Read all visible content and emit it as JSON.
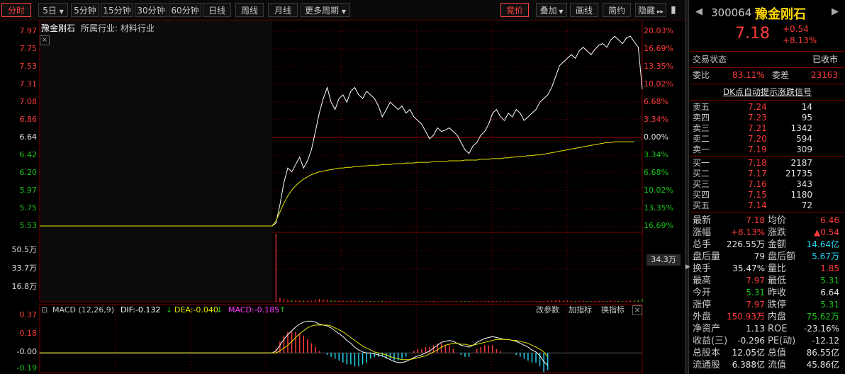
{
  "toolbar": {
    "tabs": [
      {
        "label": "分时",
        "active": true
      },
      {
        "label": "5日"
      },
      {
        "label": "5分钟"
      },
      {
        "label": "15分钟"
      },
      {
        "label": "30分钟"
      },
      {
        "label": "60分钟"
      },
      {
        "label": "日线"
      },
      {
        "label": "周线"
      },
      {
        "label": "月线"
      },
      {
        "label": "更多周期"
      }
    ],
    "right_tabs": [
      {
        "label": "竞价",
        "active": true
      },
      {
        "label": "叠加"
      },
      {
        "label": "画线"
      },
      {
        "label": "简约"
      },
      {
        "label": "隐藏"
      }
    ]
  },
  "chart_header": {
    "name": "豫金刚石",
    "industry_label": "所属行业:",
    "industry": "材料行业",
    "close_symbol": "×"
  },
  "price_axis_left": [
    "7.97",
    "7.75",
    "7.53",
    "7.31",
    "7.08",
    "6.86",
    "6.64",
    "6.42",
    "6.20",
    "5.97",
    "5.75",
    "5.53"
  ],
  "pct_axis_right": [
    "20.03%",
    "16.69%",
    "13.35%",
    "10.02%",
    "6.68%",
    "3.34%",
    "0.00%",
    "3.34%",
    "6.68%",
    "10.02%",
    "13.35%",
    "16.69%"
  ],
  "volume_axis_left": [
    "50.5万",
    "33.7万",
    "16.8万"
  ],
  "volume_marker": "34.3万",
  "macd": {
    "title": "MACD (12,26,9)",
    "dif_label": "DIF:-0.132",
    "dea_label": "DEA:-0.040",
    "macd_label": "MACD:-0.185",
    "buttons": [
      "改参数",
      "加指标",
      "换指标"
    ],
    "close_symbol": "×",
    "axis": [
      "0.37",
      "0.18",
      "-0.00",
      "-0.19"
    ]
  },
  "chart_data": {
    "type": "line",
    "title": "豫金刚石",
    "prev_close": 6.64,
    "ylim": [
      5.31,
      7.97
    ],
    "price": [
      5.31,
      5.31,
      5.31,
      5.31,
      5.31,
      5.31,
      5.31,
      5.31,
      5.31,
      5.31,
      5.31,
      5.31,
      5.31,
      5.31,
      5.31,
      5.31,
      5.31,
      5.31,
      5.31,
      5.31,
      5.31,
      5.31,
      5.31,
      5.31,
      5.31,
      5.31,
      5.31,
      5.31,
      5.31,
      5.31,
      5.31,
      5.31,
      5.31,
      5.31,
      5.31,
      5.31,
      5.31,
      5.31,
      5.31,
      5.31,
      5.31,
      5.31,
      5.31,
      5.31,
      5.31,
      5.31,
      5.31,
      5.31,
      5.31,
      5.31,
      5.31,
      5.31,
      5.31,
      5.31,
      5.31,
      5.31,
      5.31,
      5.31,
      5.31,
      5.31,
      5.35,
      5.6,
      5.9,
      6.1,
      6.05,
      6.15,
      6.25,
      6.1,
      6.2,
      6.35,
      6.6,
      6.85,
      7.05,
      7.2,
      7.0,
      6.9,
      7.05,
      7.1,
      7.0,
      7.15,
      7.2,
      7.1,
      7.05,
      7.15,
      7.1,
      7.05,
      6.95,
      6.8,
      6.9,
      7.0,
      6.95,
      6.9,
      6.95,
      6.85,
      6.9,
      6.8,
      6.75,
      6.7,
      6.6,
      6.5,
      6.55,
      6.65,
      6.6,
      6.62,
      6.65,
      6.6,
      6.55,
      6.45,
      6.35,
      6.3,
      6.4,
      6.45,
      6.55,
      6.6,
      6.7,
      6.85,
      6.9,
      6.8,
      6.75,
      6.85,
      6.8,
      6.9,
      6.85,
      6.75,
      6.8,
      6.85,
      6.9,
      7.0,
      7.05,
      7.1,
      7.2,
      7.35,
      7.5,
      7.55,
      7.6,
      7.65,
      7.6,
      7.7,
      7.75,
      7.7,
      7.65,
      7.72,
      7.78,
      7.8,
      7.75,
      7.85,
      7.9,
      7.85,
      7.8,
      7.88,
      7.9,
      7.82,
      7.75,
      7.18
    ],
    "avg_price": [
      5.31,
      5.31,
      5.31,
      5.31,
      5.31,
      5.31,
      5.31,
      5.31,
      5.31,
      5.31,
      5.31,
      5.31,
      5.31,
      5.31,
      5.31,
      5.31,
      5.31,
      5.31,
      5.31,
      5.31,
      5.31,
      5.31,
      5.31,
      5.31,
      5.31,
      5.31,
      5.31,
      5.31,
      5.31,
      5.31,
      5.31,
      5.31,
      5.31,
      5.31,
      5.31,
      5.31,
      5.31,
      5.31,
      5.31,
      5.31,
      5.31,
      5.31,
      5.31,
      5.31,
      5.31,
      5.31,
      5.31,
      5.31,
      5.31,
      5.31,
      5.31,
      5.31,
      5.31,
      5.31,
      5.31,
      5.31,
      5.31,
      5.31,
      5.31,
      5.31,
      5.38,
      5.5,
      5.62,
      5.72,
      5.8,
      5.86,
      5.91,
      5.95,
      5.98,
      6.01,
      6.03,
      6.05,
      6.06,
      6.07,
      6.08,
      6.09,
      6.1,
      6.1,
      6.11,
      6.11,
      6.12,
      6.12,
      6.13,
      6.13,
      6.14,
      6.14,
      6.14,
      6.15,
      6.15,
      6.15,
      6.16,
      6.16,
      6.16,
      6.17,
      6.17,
      6.17,
      6.18,
      6.18,
      6.18,
      6.18,
      6.19,
      6.19,
      6.19,
      6.19,
      6.2,
      6.2,
      6.2,
      6.2,
      6.21,
      6.21,
      6.21,
      6.21,
      6.22,
      6.22,
      6.22,
      6.23,
      6.23,
      6.23,
      6.24,
      6.24,
      6.25,
      6.25,
      6.26,
      6.26,
      6.27,
      6.27,
      6.28,
      6.28,
      6.29,
      6.3,
      6.31,
      6.32,
      6.33,
      6.34,
      6.35,
      6.36,
      6.37,
      6.38,
      6.39,
      6.4,
      6.41,
      6.42,
      6.43,
      6.44,
      6.45,
      6.45,
      6.46,
      6.46,
      6.46,
      6.46,
      6.46,
      6.46
    ],
    "volume_ylim": [
      0,
      505000
    ],
    "volume": [
      0,
      0,
      0,
      0,
      0,
      0,
      0,
      0,
      0,
      0,
      0,
      0,
      0,
      0,
      0,
      0,
      0,
      0,
      0,
      0,
      0,
      0,
      0,
      0,
      0,
      0,
      0,
      0,
      0,
      0,
      0,
      0,
      0,
      0,
      0,
      0,
      0,
      0,
      0,
      0,
      0,
      0,
      0,
      0,
      0,
      0,
      0,
      0,
      0,
      0,
      0,
      0,
      0,
      0,
      0,
      0,
      0,
      0,
      0,
      0,
      505000,
      30000,
      20000,
      15000,
      12000,
      10000,
      9000,
      8000,
      8000,
      7000,
      15000,
      20000,
      18000,
      16000,
      12000,
      10000,
      9000,
      8000,
      7000,
      9000,
      8000,
      7000,
      6000,
      6000,
      5000,
      5000,
      6000,
      7000,
      5000,
      4000,
      4000,
      4000,
      3000,
      3000,
      4000,
      4000,
      3000,
      3000,
      3000,
      4000,
      5000,
      3000,
      3000,
      3000,
      3000,
      3000,
      4000,
      5000,
      6000,
      5000,
      4000,
      3000,
      3000,
      4000,
      5000,
      6000,
      4000,
      3000,
      3000,
      4000,
      3000,
      3000,
      3000,
      3000,
      3000,
      3000,
      4000,
      5000,
      6000,
      7000,
      9000,
      11000,
      10000,
      9000,
      8000,
      7000,
      6000,
      7000,
      8000,
      6000,
      5000,
      6000,
      7000,
      6000,
      5000,
      8000,
      9000,
      7000,
      6000,
      7000,
      8000,
      9000,
      12000,
      20000
    ],
    "macd": {
      "ylim": [
        -0.19,
        0.37
      ],
      "dif": [
        0,
        0,
        0,
        0,
        0,
        0,
        0,
        0,
        0,
        0,
        0,
        0,
        0,
        0,
        0,
        0,
        0,
        0,
        0,
        0,
        0,
        0,
        0,
        0,
        0,
        0,
        0,
        0,
        0,
        0,
        0,
        0,
        0,
        0,
        0,
        0,
        0,
        0,
        0,
        0,
        0,
        0,
        0,
        0,
        0,
        0,
        0,
        0,
        0,
        0,
        0,
        0,
        0,
        0,
        0,
        0,
        0,
        0,
        0,
        0,
        0.02,
        0.08,
        0.14,
        0.19,
        0.23,
        0.27,
        0.3,
        0.32,
        0.33,
        0.33,
        0.32,
        0.3,
        0.29,
        0.28,
        0.26,
        0.23,
        0.2,
        0.17,
        0.13,
        0.1,
        0.06,
        0.03,
        0.01,
        0.0,
        0.0,
        -0.01,
        -0.02,
        -0.03,
        -0.05,
        -0.07,
        -0.09,
        -0.1,
        -0.1,
        -0.09,
        -0.07,
        -0.05,
        -0.03,
        -0.02,
        0.0,
        0.02,
        0.05,
        0.08,
        0.11,
        0.12,
        0.13,
        0.12,
        0.1,
        0.08,
        0.07,
        0.06,
        0.08,
        0.11,
        0.13,
        0.15,
        0.16,
        0.17,
        0.16,
        0.15,
        0.14,
        0.14,
        0.13,
        0.12,
        0.1,
        0.08,
        0.06,
        0.03,
        0.01,
        -0.03,
        -0.09,
        -0.13
      ],
      "dea": [
        0,
        0,
        0,
        0,
        0,
        0,
        0,
        0,
        0,
        0,
        0,
        0,
        0,
        0,
        0,
        0,
        0,
        0,
        0,
        0,
        0,
        0,
        0,
        0,
        0,
        0,
        0,
        0,
        0,
        0,
        0,
        0,
        0,
        0,
        0,
        0,
        0,
        0,
        0,
        0,
        0,
        0,
        0,
        0,
        0,
        0,
        0,
        0,
        0,
        0,
        0,
        0,
        0,
        0,
        0,
        0,
        0,
        0,
        0,
        0,
        0.0,
        0.02,
        0.05,
        0.08,
        0.12,
        0.16,
        0.2,
        0.23,
        0.26,
        0.28,
        0.29,
        0.29,
        0.29,
        0.29,
        0.28,
        0.26,
        0.24,
        0.22,
        0.19,
        0.16,
        0.13,
        0.1,
        0.07,
        0.05,
        0.03,
        0.01,
        0.0,
        -0.01,
        -0.02,
        -0.04,
        -0.05,
        -0.06,
        -0.07,
        -0.07,
        -0.07,
        -0.06,
        -0.05,
        -0.04,
        -0.03,
        -0.01,
        0.01,
        0.03,
        0.06,
        0.08,
        0.09,
        0.1,
        0.1,
        0.09,
        0.09,
        0.08,
        0.08,
        0.09,
        0.1,
        0.11,
        0.12,
        0.13,
        0.14,
        0.14,
        0.14,
        0.14,
        0.13,
        0.13,
        0.12,
        0.11,
        0.1,
        0.08,
        0.06,
        0.04,
        0.01,
        -0.04
      ]
    }
  },
  "quote": {
    "code": "300064",
    "name": "豫金刚石",
    "price": "7.18",
    "change": "+0.54",
    "change_pct": "+8.13%",
    "status_label": "交易状态",
    "status": "已收市",
    "weibi_label": "委比",
    "weibi": "83.11%",
    "weicha_label": "委差",
    "weicha": "23163",
    "dk_title": "DK点自动提示涨跌信号",
    "asks": [
      {
        "label": "卖五",
        "price": "7.24",
        "vol": "14"
      },
      {
        "label": "卖四",
        "price": "7.23",
        "vol": "95"
      },
      {
        "label": "卖三",
        "price": "7.21",
        "vol": "1342"
      },
      {
        "label": "卖二",
        "price": "7.20",
        "vol": "594"
      },
      {
        "label": "卖一",
        "price": "7.19",
        "vol": "309"
      }
    ],
    "bids": [
      {
        "label": "买一",
        "price": "7.18",
        "vol": "2187"
      },
      {
        "label": "买二",
        "price": "7.17",
        "vol": "21735"
      },
      {
        "label": "买三",
        "price": "7.16",
        "vol": "343"
      },
      {
        "label": "买四",
        "price": "7.15",
        "vol": "1180"
      },
      {
        "label": "买五",
        "price": "7.14",
        "vol": "72"
      }
    ],
    "stats": [
      {
        "l1": "最新",
        "v1": "7.18",
        "c1": "red",
        "l2": "均价",
        "v2": "6.46",
        "c2": "red"
      },
      {
        "l1": "涨幅",
        "v1": "+8.13%",
        "c1": "red",
        "l2": "涨跌",
        "v2": "▲0.54",
        "c2": "red"
      },
      {
        "l1": "总手",
        "v1": "226.55万",
        "c1": "white",
        "l2": "金额",
        "v2": "14.64亿",
        "c2": "cyan"
      },
      {
        "l1": "盘后量",
        "v1": "79",
        "c1": "white",
        "l2": "盘后额",
        "v2": "5.67万",
        "c2": "cyan"
      },
      {
        "l1": "换手",
        "v1": "35.47%",
        "c1": "white",
        "l2": "量比",
        "v2": "1.85",
        "c2": "red"
      },
      {
        "l1": "最高",
        "v1": "7.97",
        "c1": "red",
        "l2": "最低",
        "v2": "5.31",
        "c2": "green"
      },
      {
        "l1": "今开",
        "v1": "5.31",
        "c1": "green",
        "l2": "昨收",
        "v2": "6.64",
        "c2": "white"
      },
      {
        "l1": "涨停",
        "v1": "7.97",
        "c1": "red",
        "l2": "跌停",
        "v2": "5.31",
        "c2": "green"
      },
      {
        "l1": "外盘",
        "v1": "150.93万",
        "c1": "red",
        "l2": "内盘",
        "v2": "75.62万",
        "c2": "green"
      },
      {
        "l1": "净资产",
        "v1": "1.13",
        "c1": "white",
        "l2": "ROE",
        "v2": "-23.16%",
        "c2": "white"
      },
      {
        "l1": "收益(三)",
        "v1": "-0.296",
        "c1": "white",
        "l2": "PE(动)",
        "v2": "-12.12",
        "c2": "white"
      },
      {
        "l1": "总股本",
        "v1": "12.05亿",
        "c1": "white",
        "l2": "总值",
        "v2": "86.55亿",
        "c2": "white"
      },
      {
        "l1": "流通股",
        "v1": "6.388亿",
        "c1": "white",
        "l2": "流值",
        "v2": "45.86亿",
        "c2": "white"
      }
    ]
  },
  "colors": {
    "up": "#ff3b3b",
    "down": "#18c318",
    "price_line": "#ffffff",
    "avg_line": "#e6e600",
    "grid": "#7a0000"
  }
}
